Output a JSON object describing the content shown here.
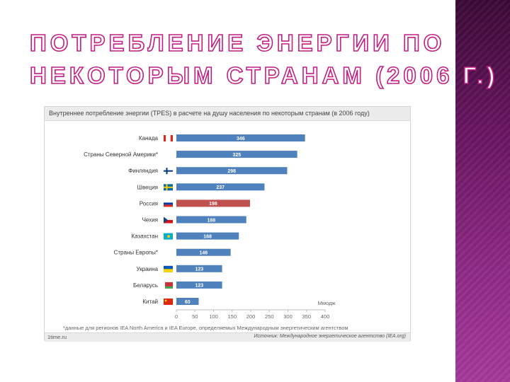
{
  "slide": {
    "title_line1": "ПОТРЕБЛЕНИЕ ЭНЕРГИИ ПО",
    "title_line2": "НЕКОТОРЫМ СТРАНАМ (2006 Г.)"
  },
  "colors": {
    "bar": "#4f81bd",
    "highlight": "#c0504d",
    "title_stroke": "#c21e84",
    "stripe": "#7a1f70"
  },
  "chart_data": {
    "type": "bar",
    "orientation": "horizontal",
    "title": "Внутреннее потребление энергии (TPES) в расчете на душу населения по некоторым странам (в 2006 году)",
    "xlabel": "Ммодж",
    "categories": [
      "Канада",
      "Страны Северной Америки*",
      "Финляндия",
      "Швеция",
      "Россия",
      "Чехия",
      "Казахстан",
      "Страны Европы*",
      "Украина",
      "Беларусь",
      "Китай"
    ],
    "flags": [
      "ca",
      "",
      "fi",
      "se",
      "ru",
      "cz",
      "kz",
      "",
      "ua",
      "by",
      "cn"
    ],
    "values": [
      346,
      325,
      298,
      237,
      198,
      188,
      168,
      146,
      123,
      123,
      60
    ],
    "highlight_index": 4,
    "xlim": [
      0,
      400
    ],
    "xticks": [
      0,
      50,
      100,
      150,
      200,
      250,
      300,
      350,
      400
    ],
    "footnote": "*данные для регионов IEA North America и IEA Europe, определяемых Международным энергетическим агентством",
    "site": "1time.ru",
    "source": "Источник: Международное энергетическое агентство (IEA.org)"
  }
}
